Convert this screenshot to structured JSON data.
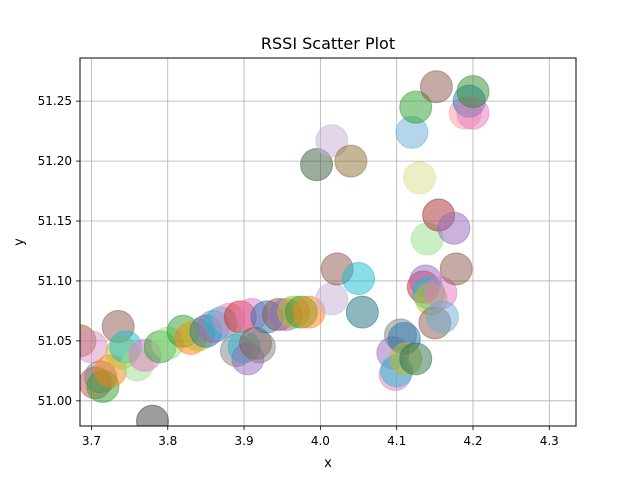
{
  "chart_data": {
    "type": "scatter",
    "title": "RSSI Scatter Plot",
    "xlabel": "x",
    "ylabel": "y",
    "xlim": [
      3.685,
      4.335
    ],
    "ylim": [
      50.979,
      51.286
    ],
    "grid": true,
    "xticks": [
      {
        "value": 3.7,
        "label": "3.7"
      },
      {
        "value": 3.8,
        "label": "3.8"
      },
      {
        "value": 3.9,
        "label": "3.9"
      },
      {
        "value": 4.0,
        "label": "4.0"
      },
      {
        "value": 4.1,
        "label": "4.1"
      },
      {
        "value": 4.2,
        "label": "4.2"
      },
      {
        "value": 4.3,
        "label": "4.3"
      }
    ],
    "yticks": [
      {
        "value": 51.0,
        "label": "51.00"
      },
      {
        "value": 51.05,
        "label": "51.05"
      },
      {
        "value": 51.1,
        "label": "51.10"
      },
      {
        "value": 51.15,
        "label": "51.15"
      },
      {
        "value": 51.2,
        "label": "51.20"
      },
      {
        "value": 51.25,
        "label": "51.25"
      }
    ],
    "marker_alpha": 0.5,
    "points": [
      {
        "x": 3.685,
        "y": 51.05,
        "color": "#a0522d"
      },
      {
        "x": 3.7,
        "y": 51.045,
        "color": "#dc8ebf"
      },
      {
        "x": 3.705,
        "y": 51.015,
        "color": "#c44e52"
      },
      {
        "x": 3.712,
        "y": 51.02,
        "color": "#7f7f7f"
      },
      {
        "x": 3.715,
        "y": 51.012,
        "color": "#2ca02c"
      },
      {
        "x": 3.725,
        "y": 51.025,
        "color": "#ff7f0e"
      },
      {
        "x": 3.735,
        "y": 51.062,
        "color": "#8c564b"
      },
      {
        "x": 3.74,
        "y": 51.04,
        "color": "#bcbd22"
      },
      {
        "x": 3.745,
        "y": 51.045,
        "color": "#17becf"
      },
      {
        "x": 3.76,
        "y": 51.03,
        "color": "#98df8a"
      },
      {
        "x": 3.77,
        "y": 51.038,
        "color": "#e377c2"
      },
      {
        "x": 3.78,
        "y": 50.983,
        "color": "#3b3b3b"
      },
      {
        "x": 3.79,
        "y": 51.045,
        "color": "#2ca02c"
      },
      {
        "x": 3.8,
        "y": 51.048,
        "color": "#98df8a"
      },
      {
        "x": 3.82,
        "y": 51.058,
        "color": "#2ca02c"
      },
      {
        "x": 3.83,
        "y": 51.052,
        "color": "#ff7f0e"
      },
      {
        "x": 3.84,
        "y": 51.055,
        "color": "#bcbd22"
      },
      {
        "x": 3.85,
        "y": 51.058,
        "color": "#1f77b4"
      },
      {
        "x": 3.86,
        "y": 51.062,
        "color": "#9467bd"
      },
      {
        "x": 3.87,
        "y": 51.065,
        "color": "#17becf"
      },
      {
        "x": 3.88,
        "y": 51.068,
        "color": "#dc8ebf"
      },
      {
        "x": 3.89,
        "y": 51.042,
        "color": "#7f7f7f"
      },
      {
        "x": 3.895,
        "y": 51.07,
        "color": "#d62728"
      },
      {
        "x": 3.9,
        "y": 51.045,
        "color": "#17becf"
      },
      {
        "x": 3.905,
        "y": 51.035,
        "color": "#9467bd"
      },
      {
        "x": 3.91,
        "y": 51.072,
        "color": "#e377c2"
      },
      {
        "x": 3.915,
        "y": 51.048,
        "color": "#8c564b"
      },
      {
        "x": 3.92,
        "y": 51.045,
        "color": "#7f7f7f"
      },
      {
        "x": 3.93,
        "y": 51.07,
        "color": "#1f77b4"
      },
      {
        "x": 3.945,
        "y": 51.072,
        "color": "#8c564b"
      },
      {
        "x": 3.955,
        "y": 51.072,
        "color": "#9467bd"
      },
      {
        "x": 3.965,
        "y": 51.074,
        "color": "#bcbd22"
      },
      {
        "x": 3.975,
        "y": 51.074,
        "color": "#2ca02c"
      },
      {
        "x": 3.985,
        "y": 51.074,
        "color": "#ff7f0e"
      },
      {
        "x": 3.995,
        "y": 51.197,
        "color": "#3b5b3b"
      },
      {
        "x": 4.015,
        "y": 51.085,
        "color": "#c5b0d5"
      },
      {
        "x": 4.015,
        "y": 51.217,
        "color": "#c5b0d5"
      },
      {
        "x": 4.022,
        "y": 51.11,
        "color": "#8c564b"
      },
      {
        "x": 4.04,
        "y": 51.2,
        "color": "#8c6d31"
      },
      {
        "x": 4.05,
        "y": 51.102,
        "color": "#17becf"
      },
      {
        "x": 4.055,
        "y": 51.074,
        "color": "#1b6f7a"
      },
      {
        "x": 4.095,
        "y": 51.04,
        "color": "#9467bd"
      },
      {
        "x": 4.098,
        "y": 51.022,
        "color": "#e377c2"
      },
      {
        "x": 4.1,
        "y": 51.025,
        "color": "#17becf"
      },
      {
        "x": 4.105,
        "y": 51.055,
        "color": "#7f7f7f"
      },
      {
        "x": 4.11,
        "y": 51.052,
        "color": "#1f77b4"
      },
      {
        "x": 4.112,
        "y": 51.035,
        "color": "#bcbd22"
      },
      {
        "x": 4.125,
        "y": 51.035,
        "color": "#2c6e4e"
      },
      {
        "x": 4.12,
        "y": 51.224,
        "color": "#6baed6"
      },
      {
        "x": 4.125,
        "y": 51.245,
        "color": "#2ca02c"
      },
      {
        "x": 4.13,
        "y": 51.186,
        "color": "#dbdb8d"
      },
      {
        "x": 4.135,
        "y": 51.095,
        "color": "#d62728"
      },
      {
        "x": 4.138,
        "y": 51.1,
        "color": "#9467bd"
      },
      {
        "x": 4.14,
        "y": 51.135,
        "color": "#98df8a"
      },
      {
        "x": 4.142,
        "y": 51.09,
        "color": "#17becf"
      },
      {
        "x": 4.145,
        "y": 51.085,
        "color": "#bcbd22"
      },
      {
        "x": 4.15,
        "y": 51.065,
        "color": "#8c564b"
      },
      {
        "x": 4.152,
        "y": 51.262,
        "color": "#8c564b"
      },
      {
        "x": 4.155,
        "y": 51.155,
        "color": "#a52a2a"
      },
      {
        "x": 4.158,
        "y": 51.09,
        "color": "#e377c2"
      },
      {
        "x": 4.16,
        "y": 51.07,
        "color": "#6baed6"
      },
      {
        "x": 4.175,
        "y": 51.144,
        "color": "#9467bd"
      },
      {
        "x": 4.178,
        "y": 51.11,
        "color": "#8c564b"
      },
      {
        "x": 4.19,
        "y": 51.24,
        "color": "#ff9896"
      },
      {
        "x": 4.195,
        "y": 51.25,
        "color": "#1f77b4"
      },
      {
        "x": 4.2,
        "y": 51.24,
        "color": "#e377c2"
      },
      {
        "x": 4.2,
        "y": 51.258,
        "color": "#2e8b2e"
      }
    ]
  }
}
